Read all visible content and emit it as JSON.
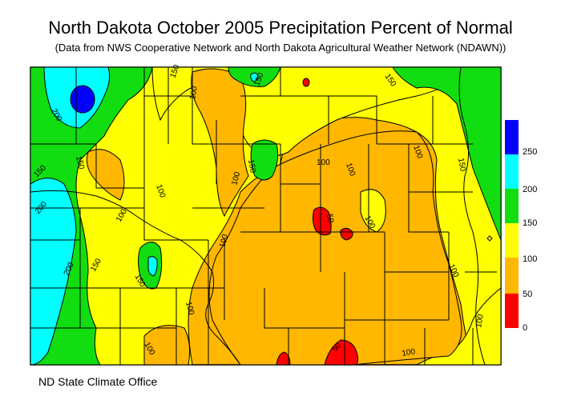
{
  "title": "North Dakota October 2005 Precipitation Percent of Normal",
  "subtitle": "(Data from NWS Cooperative Network and North Dakota Agricultural Weather Network (NDAWN))",
  "credit": "ND State Climate Office",
  "colors": {
    "lt50": "#ff0000",
    "50to100": "#ffb700",
    "100to150": "#ffff00",
    "150to200": "#11dd11",
    "200to250": "#00ffff",
    "gt250": "#0000ff"
  },
  "legend": {
    "labels": [
      "250",
      "200",
      "150",
      "100",
      "50",
      "0"
    ]
  },
  "contour_labels": {
    "l150": "150",
    "l100": "100",
    "l200": "200",
    "l50": "50"
  }
}
